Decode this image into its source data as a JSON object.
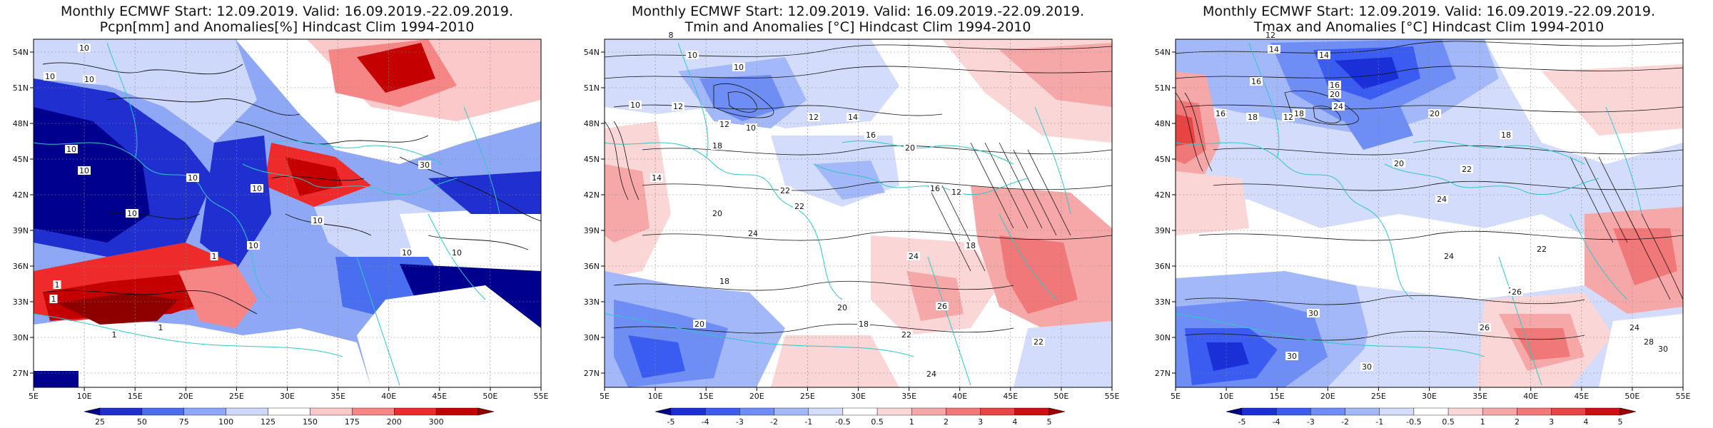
{
  "panels": [
    {
      "id": "pcpn",
      "title_line1": "Monthly ECMWF Start: 12.09.2019. Valid: 16.09.2019.-22.09.2019.",
      "title_line2": "Pcpn[mm] and Anomalies[%] Hindcast Clim 1994-2010",
      "colorbar": {
        "labels": [
          "25",
          "50",
          "75",
          "100",
          "125",
          "150",
          "175",
          "200",
          "300"
        ],
        "colors": [
          "#00008e",
          "#1f2fd0",
          "#4a6ef0",
          "#8fa8f5",
          "#cdd8fb",
          "#ffffff",
          "#fbc9c9",
          "#f68686",
          "#ee2a2a",
          "#c50000",
          "#8e0000"
        ]
      },
      "contour_labels": [
        "10",
        "10",
        "10",
        "10",
        "10",
        "10",
        "10",
        "10",
        "30",
        "10",
        "10",
        "10",
        "10",
        "1",
        "1",
        "1",
        "1",
        "1"
      ]
    },
    {
      "id": "tmin",
      "title_line1": "Monthly ECMWF Start: 12.09.2019. Valid: 16.09.2019.-22.09.2019.",
      "title_line2": "Tmin and Anomalies [°C] Hindcast Clim 1994-2010",
      "colorbar": {
        "labels": [
          "-5",
          "-4",
          "-3",
          "-2",
          "-1",
          "-0.5",
          "0.5",
          "1",
          "2",
          "3",
          "4",
          "5"
        ],
        "colors": [
          "#00008e",
          "#1a2fd6",
          "#3b5cf0",
          "#6f8ef5",
          "#a3b8f8",
          "#d3ddfb",
          "#ffffff",
          "#fbd6d6",
          "#f6a8a8",
          "#f07878",
          "#e84444",
          "#cf0f0f",
          "#9c0000"
        ]
      },
      "contour_labels": [
        "8",
        "10",
        "10",
        "10",
        "12",
        "14",
        "10",
        "12",
        "18",
        "12",
        "14",
        "16",
        "20",
        "16",
        "22",
        "22",
        "20",
        "24",
        "12",
        "18",
        "24",
        "22",
        "20",
        "18",
        "20",
        "18",
        "26",
        "22",
        "24"
      ]
    },
    {
      "id": "tmax",
      "title_line1": "Monthly ECMWF Start: 12.09.2019. Valid: 16.09.2019.-22.09.2019.",
      "title_line2": "Tmax and Anomalies [°C] Hindcast Clim 1994-2010",
      "colorbar": {
        "labels": [
          "-5",
          "-4",
          "-3",
          "-2",
          "-1",
          "-0.5",
          "0.5",
          "1",
          "2",
          "3",
          "4",
          "5"
        ],
        "colors": [
          "#00008e",
          "#1a2fd6",
          "#3b5cf0",
          "#6f8ef5",
          "#a3b8f8",
          "#d3ddfb",
          "#ffffff",
          "#fbd6d6",
          "#f6a8a8",
          "#f07878",
          "#e84444",
          "#cf0f0f",
          "#9c0000"
        ]
      },
      "contour_labels": [
        "14",
        "12",
        "14",
        "16",
        "16",
        "18",
        "16",
        "20",
        "24",
        "18",
        "12",
        "20",
        "18",
        "22",
        "24",
        "20",
        "24",
        "22",
        "26",
        "26",
        "30",
        "30",
        "26",
        "30",
        "28",
        "30",
        "24"
      ]
    }
  ],
  "axes": {
    "lon_labels": [
      "5E",
      "10E",
      "15E",
      "20E",
      "25E",
      "30E",
      "35E",
      "40E",
      "45E",
      "50E",
      "55E"
    ],
    "lat_labels": [
      "54N",
      "51N",
      "48N",
      "45N",
      "42N",
      "39N",
      "36N",
      "33N",
      "30N",
      "27N"
    ]
  },
  "map_colors": {
    "coastline": "#2ec8c8",
    "contour": "#111111",
    "frame": "#000000",
    "grid": "#888888"
  }
}
